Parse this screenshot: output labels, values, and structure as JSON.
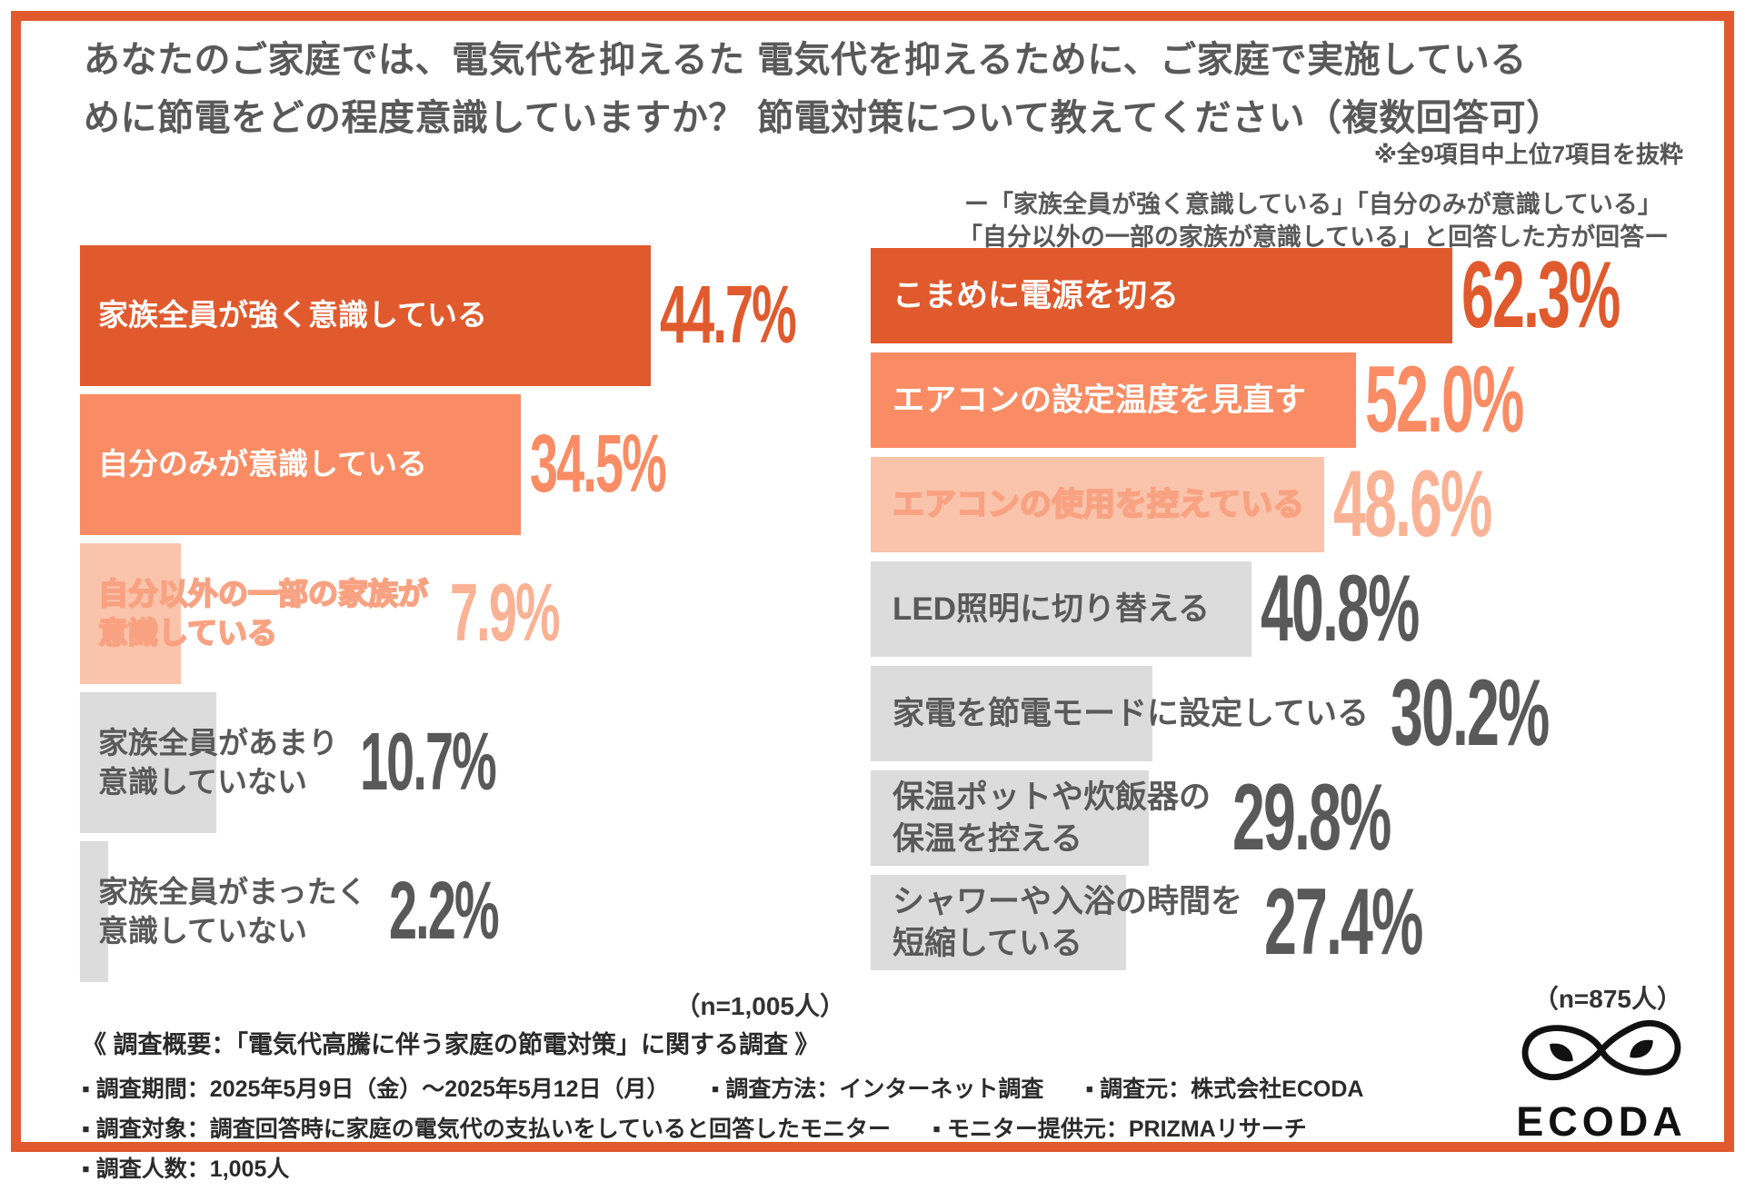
{
  "colors": {
    "frame": "#E05A2D",
    "bar_strong": "#E05A2D",
    "bar_medium": "#F98C64",
    "bar_light": "#FAC4AC",
    "bar_light_outline": "#F9A282",
    "bar_light_value": "#FAB294",
    "bar_gray": "#DCDCDC",
    "text_dark": "#595959",
    "footer_text": "#2B2B2B",
    "logo": "#111111"
  },
  "chart_data": [
    {
      "type": "bar",
      "orientation": "horizontal",
      "title": "あなたのご家庭では、電気代を抑えるために節電をどの程度意識していますか？",
      "title_lines": [
        "あなたのご家庭では、電気代を抑えるた",
        "めに節電をどの程度意識していますか？"
      ],
      "categories": [
        "家族全員が強く意識している",
        "自分のみが意識している",
        "自分以外の一部の家族が意識している",
        "家族全員があまり意識していない",
        "家族全員がまったく意識していない"
      ],
      "values": [
        44.7,
        34.5,
        7.9,
        10.7,
        2.2
      ],
      "value_labels": [
        "44.7%",
        "34.5%",
        "7.9%",
        "10.7%",
        "2.2%"
      ],
      "xlim": [
        0,
        58
      ],
      "grid": false,
      "legend": false,
      "n_label": "（n=1,005人）",
      "bars": [
        {
          "label_lines": [
            "家族全員が強く意識している"
          ],
          "value": 44.7,
          "pct": "44.7%",
          "style": "strong"
        },
        {
          "label_lines": [
            "自分のみが意識している"
          ],
          "value": 34.5,
          "pct": "34.5%",
          "style": "medium"
        },
        {
          "label_lines": [
            "自分以外の一部の家族が",
            "意識している"
          ],
          "value": 7.9,
          "pct": "7.9%",
          "style": "light"
        },
        {
          "label_lines": [
            "家族全員があまり",
            "意識していない"
          ],
          "value": 10.7,
          "pct": "10.7%",
          "style": "gray"
        },
        {
          "label_lines": [
            "家族全員がまったく",
            "意識していない"
          ],
          "value": 2.2,
          "pct": "2.2%",
          "style": "gray"
        }
      ]
    },
    {
      "type": "bar",
      "orientation": "horizontal",
      "title": "電気代を抑えるために、ご家庭で実施している節電対策について教えてください（複数回答可）",
      "title_lines": [
        "電気代を抑えるために、ご家庭で実施している",
        "節電対策について教えてください（複数回答可）"
      ],
      "note": "※全9項目中上位7項目を抜粋",
      "subtitle_lines": [
        "ー「家族全員が強く意識している」「自分のみが意識している」",
        "「自分以外の一部の家族が意識している」と回答した方が回答ー"
      ],
      "categories": [
        "こまめに電源を切る",
        "エアコンの設定温度を見直す",
        "エアコンの使用を控えている",
        "LED照明に切り替える",
        "家電を節電モードに設定している",
        "保温ポットや炊飯器の保温を控える",
        "シャワーや入浴の時間を短縮している"
      ],
      "values": [
        62.3,
        52.0,
        48.6,
        40.8,
        30.2,
        29.8,
        27.4
      ],
      "value_labels": [
        "62.3%",
        "52.0%",
        "48.6%",
        "40.8%",
        "30.2%",
        "29.8%",
        "27.4%"
      ],
      "xlim": [
        0,
        88
      ],
      "grid": false,
      "legend": false,
      "n_label": "（n=875人）",
      "bars": [
        {
          "label_lines": [
            "こまめに電源を切る"
          ],
          "value": 62.3,
          "pct": "62.3%",
          "style": "strong"
        },
        {
          "label_lines": [
            "エアコンの設定温度を見直す"
          ],
          "value": 52.0,
          "pct": "52.0%",
          "style": "medium"
        },
        {
          "label_lines": [
            "エアコンの使用を控えている"
          ],
          "value": 48.6,
          "pct": "48.6%",
          "style": "light"
        },
        {
          "label_lines": [
            "LED照明に切り替える"
          ],
          "value": 40.8,
          "pct": "40.8%",
          "style": "gray"
        },
        {
          "label_lines": [
            "家電を節電モードに設定している"
          ],
          "value": 30.2,
          "pct": "30.2%",
          "style": "gray"
        },
        {
          "label_lines": [
            "保温ポットや炊飯器の",
            "保温を控える"
          ],
          "value": 29.8,
          "pct": "29.8%",
          "style": "gray"
        },
        {
          "label_lines": [
            "シャワーや入浴の時間を",
            "短縮している"
          ],
          "value": 27.4,
          "pct": "27.4%",
          "style": "gray"
        }
      ]
    }
  ],
  "footer": {
    "heading": "《 調査概要：「電気代高騰に伴う家庭の節電対策」に関する調査 》",
    "rows": [
      [
        "▪ 調査期間：2025年5月9日（金）〜2025年5月12日（月）",
        "▪ 調査方法：インターネット調査",
        "▪ 調査元：株式会社ECODA"
      ],
      [
        "▪ 調査対象：調査回答時に家庭の電気代の支払いをしていると回答したモニター",
        "▪ モニター提供元：PRIZMAリサーチ"
      ],
      [
        "▪ 調査人数：1,005人"
      ]
    ]
  },
  "logo": {
    "wordmark": "ECODA",
    "icon": "infinity-leaves-icon"
  }
}
